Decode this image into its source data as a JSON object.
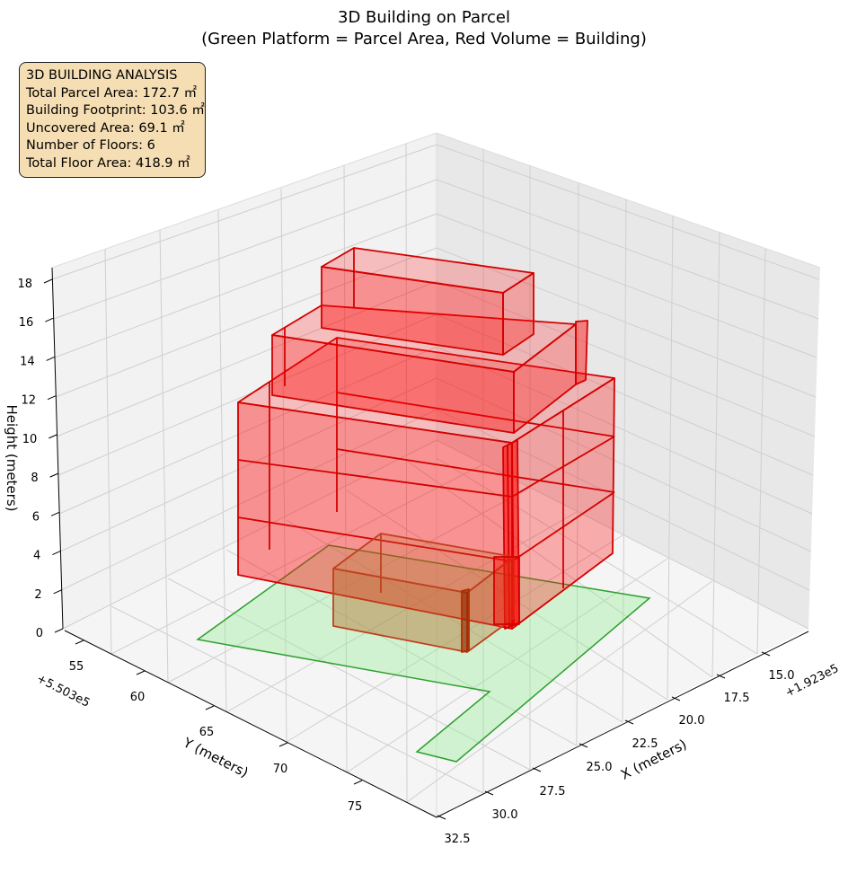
{
  "chart_data": {
    "type": "3d-building",
    "title_line1": "3D Building on Parcel",
    "title_line2": "(Green Platform = Parcel Area, Red Volume = Building)",
    "xlabel": "X (meters)",
    "ylabel": "Y (meters)",
    "zlabel": "Height (meters)",
    "x_offset": "+1.923e5",
    "y_offset": "+5.503e5",
    "x_ticks": [
      "15.0",
      "17.5",
      "20.0",
      "22.5",
      "25.0",
      "27.5",
      "30.0",
      "32.5"
    ],
    "y_ticks": [
      "55",
      "60",
      "65",
      "70",
      "75"
    ],
    "z_ticks": [
      "0",
      "2",
      "4",
      "6",
      "8",
      "10",
      "12",
      "14",
      "16",
      "18"
    ],
    "colors": {
      "parcel_fill": "#90ee90",
      "parcel_edge": "#2ca02c",
      "building": "#ff0000",
      "building_edge": "#d40000"
    },
    "info": {
      "heading": "3D BUILDING ANALYSIS",
      "lines": [
        "Total Parcel Area: 172.7 ㎡",
        "Building Footprint: 103.6 ㎡",
        "Uncovered Area: 69.1 ㎡",
        "Number of Floors: 6",
        "Total Floor Area: 418.9 ㎡"
      ]
    }
  }
}
